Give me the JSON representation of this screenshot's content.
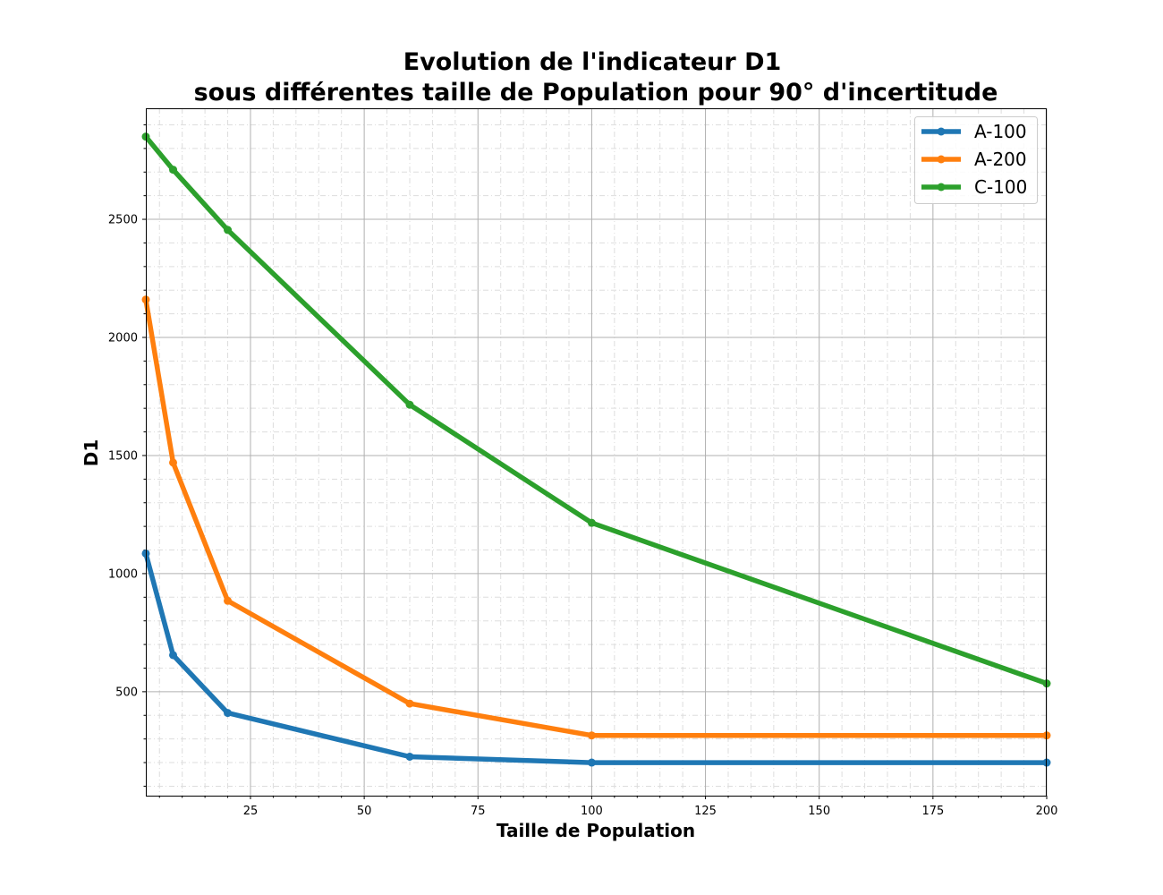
{
  "chart_data": {
    "type": "line",
    "title_line1": "Evolution de l'indicateur  D1",
    "title_line2": "sous différentes taille de Population pour 90° d'incertitude",
    "xlabel": "Taille de Population",
    "ylabel": "D1",
    "xlim": [
      2,
      200
    ],
    "ylim": [
      60,
      2970
    ],
    "x_ticks": [
      25,
      50,
      75,
      100,
      125,
      150,
      175,
      200
    ],
    "y_ticks": [
      500,
      1000,
      1500,
      2000,
      2500
    ],
    "x_tick_labels": [
      "25",
      "50",
      "75",
      "100",
      "125",
      "150",
      "175",
      "200"
    ],
    "y_tick_labels": [
      "500",
      "1000",
      "1500",
      "2000",
      "2500"
    ],
    "grid": true,
    "legend_position": "top-right",
    "x": [
      2,
      8,
      20,
      60,
      100,
      200
    ],
    "series": [
      {
        "name": "A-100",
        "color": "#1f77b4",
        "values": [
          1085,
          655,
          410,
          225,
          200,
          200
        ]
      },
      {
        "name": "A-200",
        "color": "#ff7f0e",
        "values": [
          2160,
          1470,
          885,
          450,
          315,
          315
        ]
      },
      {
        "name": "C-100",
        "color": "#2ca02c",
        "values": [
          2850,
          2710,
          2455,
          1715,
          1215,
          535
        ]
      }
    ]
  }
}
